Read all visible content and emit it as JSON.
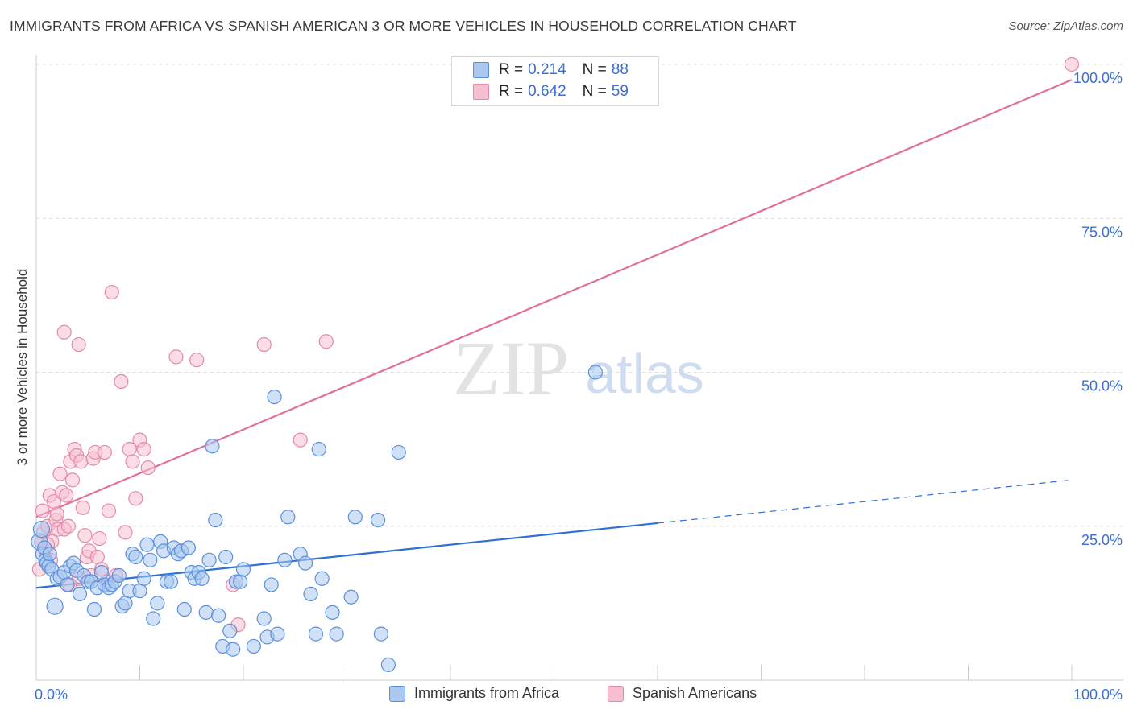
{
  "header": {
    "title": "IMMIGRANTS FROM AFRICA VS SPANISH AMERICAN 3 OR MORE VEHICLES IN HOUSEHOLD CORRELATION CHART",
    "source": "Source: ZipAtlas.com"
  },
  "watermark": {
    "zip": "ZIP",
    "atlas": "atlas"
  },
  "legend": {
    "r_label": "R =",
    "n_label": "N =",
    "series": [
      {
        "r": "0.214",
        "n": "88"
      },
      {
        "r": "0.642",
        "n": "59"
      }
    ]
  },
  "bottom_legend": {
    "items": [
      "Immigrants from Africa",
      "Spanish Americans"
    ]
  },
  "colors": {
    "blue_fill": "#aac8f0",
    "blue_stroke": "#5b8fdb",
    "blue_line": "#2f6fd6",
    "pink_fill": "#f5bfd0",
    "pink_stroke": "#e48aa8",
    "pink_line": "#e07098",
    "tick_label": "#3a6fd4",
    "grid": "#dcdcdc"
  },
  "chart_data": {
    "type": "scatter",
    "title": "IMMIGRANTS FROM AFRICA VS SPANISH AMERICAN 3 OR MORE VEHICLES IN HOUSEHOLD CORRELATION CHART",
    "xlabel": "",
    "ylabel": "3 or more Vehicles in Household",
    "xlim": [
      0,
      100
    ],
    "ylim": [
      0,
      100
    ],
    "x_tick_labels": [
      "0.0%",
      "100.0%"
    ],
    "y_ticks": [
      25,
      50,
      75,
      100
    ],
    "y_tick_labels": [
      "25.0%",
      "50.0%",
      "75.0%",
      "100.0%"
    ],
    "grid": true,
    "legend_position": "top-center",
    "series": [
      {
        "name": "Immigrants from Africa",
        "color": "#5b8fdb",
        "r": 0.214,
        "n": 88,
        "trend": {
          "x0": 0,
          "y0": 15.0,
          "x1": 60,
          "y1": 25.5,
          "dashed_to": [
            100,
            32.5
          ]
        },
        "points": [
          [
            0.3,
            22.5
          ],
          [
            0.5,
            24.5
          ],
          [
            0.6,
            20.5
          ],
          [
            0.8,
            21.5
          ],
          [
            0.9,
            19.5
          ],
          [
            1.0,
            19.0
          ],
          [
            1.2,
            18.5
          ],
          [
            1.3,
            20.5
          ],
          [
            1.5,
            18.0
          ],
          [
            1.8,
            12.0
          ],
          [
            2.0,
            16.5
          ],
          [
            2.3,
            16.8
          ],
          [
            2.7,
            17.5
          ],
          [
            3.0,
            15.5
          ],
          [
            3.3,
            18.5
          ],
          [
            3.6,
            19.0
          ],
          [
            3.9,
            17.8
          ],
          [
            4.2,
            14.0
          ],
          [
            4.6,
            17.0
          ],
          [
            5.0,
            16.0
          ],
          [
            5.3,
            16.0
          ],
          [
            5.6,
            11.5
          ],
          [
            5.9,
            15.0
          ],
          [
            6.3,
            17.5
          ],
          [
            6.6,
            15.5
          ],
          [
            7.0,
            15.0
          ],
          [
            7.3,
            15.5
          ],
          [
            7.6,
            16.0
          ],
          [
            8.0,
            17.0
          ],
          [
            8.3,
            12.0
          ],
          [
            8.6,
            12.5
          ],
          [
            9.0,
            14.5
          ],
          [
            9.3,
            20.5
          ],
          [
            9.6,
            20.0
          ],
          [
            10.0,
            14.5
          ],
          [
            10.4,
            16.5
          ],
          [
            10.7,
            22.0
          ],
          [
            11.0,
            19.5
          ],
          [
            11.3,
            10.0
          ],
          [
            11.7,
            12.5
          ],
          [
            12.0,
            22.5
          ],
          [
            12.3,
            21.0
          ],
          [
            12.6,
            16.0
          ],
          [
            13.0,
            16.0
          ],
          [
            13.3,
            21.5
          ],
          [
            13.7,
            20.5
          ],
          [
            14.0,
            21.0
          ],
          [
            14.3,
            11.5
          ],
          [
            14.7,
            21.5
          ],
          [
            15.0,
            17.5
          ],
          [
            15.3,
            16.5
          ],
          [
            15.7,
            17.5
          ],
          [
            16.0,
            16.5
          ],
          [
            16.4,
            11.0
          ],
          [
            16.7,
            19.5
          ],
          [
            17.0,
            38.0
          ],
          [
            17.3,
            26.0
          ],
          [
            17.6,
            10.5
          ],
          [
            18.0,
            5.5
          ],
          [
            18.3,
            20.0
          ],
          [
            18.7,
            8.0
          ],
          [
            19.0,
            5.0
          ],
          [
            19.3,
            16.0
          ],
          [
            19.7,
            16.0
          ],
          [
            20.0,
            18.0
          ],
          [
            21.0,
            5.5
          ],
          [
            22.0,
            10.0
          ],
          [
            22.3,
            7.0
          ],
          [
            22.7,
            15.5
          ],
          [
            23.0,
            46.0
          ],
          [
            23.3,
            7.5
          ],
          [
            24.0,
            19.5
          ],
          [
            24.3,
            26.5
          ],
          [
            25.5,
            20.5
          ],
          [
            26.0,
            19.0
          ],
          [
            26.5,
            14.0
          ],
          [
            27.0,
            7.5
          ],
          [
            27.3,
            37.5
          ],
          [
            27.6,
            16.5
          ],
          [
            28.6,
            11.0
          ],
          [
            29.0,
            7.5
          ],
          [
            30.4,
            13.5
          ],
          [
            30.8,
            26.5
          ],
          [
            33.0,
            26.0
          ],
          [
            33.3,
            7.5
          ],
          [
            34.0,
            2.5
          ],
          [
            35.0,
            37.0
          ],
          [
            54.0,
            50.0
          ]
        ]
      },
      {
        "name": "Spanish Americans",
        "color": "#e48aa8",
        "r": 0.642,
        "n": 59,
        "trend": {
          "x0": 0,
          "y0": 26.5,
          "x1": 100,
          "y1": 97.5
        },
        "points": [
          [
            0.3,
            18.0
          ],
          [
            0.5,
            22.5
          ],
          [
            0.7,
            24.0
          ],
          [
            0.9,
            21.0
          ],
          [
            1.1,
            25.0
          ],
          [
            1.3,
            30.0
          ],
          [
            1.5,
            22.5
          ],
          [
            1.7,
            29.0
          ],
          [
            1.9,
            26.0
          ],
          [
            2.1,
            24.5
          ],
          [
            2.3,
            33.5
          ],
          [
            2.5,
            30.5
          ],
          [
            2.7,
            24.5
          ],
          [
            2.9,
            30.0
          ],
          [
            3.1,
            25.0
          ],
          [
            3.3,
            35.5
          ],
          [
            3.5,
            32.5
          ],
          [
            3.7,
            37.5
          ],
          [
            3.9,
            36.5
          ],
          [
            4.1,
            16.5
          ],
          [
            4.3,
            35.5
          ],
          [
            4.5,
            28.0
          ],
          [
            4.7,
            23.5
          ],
          [
            4.9,
            20.0
          ],
          [
            5.1,
            21.0
          ],
          [
            5.3,
            17.0
          ],
          [
            5.5,
            36.0
          ],
          [
            5.7,
            37.0
          ],
          [
            5.9,
            20.0
          ],
          [
            6.1,
            23.0
          ],
          [
            6.3,
            18.0
          ],
          [
            6.6,
            37.0
          ],
          [
            7.0,
            27.5
          ],
          [
            7.3,
            63.0
          ],
          [
            7.7,
            17.0
          ],
          [
            8.2,
            48.5
          ],
          [
            8.6,
            24.0
          ],
          [
            9.0,
            37.5
          ],
          [
            9.3,
            35.5
          ],
          [
            9.6,
            29.5
          ],
          [
            10.0,
            39.0
          ],
          [
            10.4,
            37.5
          ],
          [
            10.8,
            34.5
          ],
          [
            2.7,
            56.5
          ],
          [
            4.1,
            54.5
          ],
          [
            13.5,
            52.5
          ],
          [
            15.5,
            52.0
          ],
          [
            19.5,
            9.0
          ],
          [
            22.0,
            54.5
          ],
          [
            25.5,
            39.0
          ],
          [
            28.0,
            55.0
          ],
          [
            1.1,
            22.0
          ],
          [
            1.4,
            19.5
          ],
          [
            2.0,
            27.0
          ],
          [
            3.2,
            15.5
          ],
          [
            6.8,
            16.0
          ],
          [
            19.0,
            15.5
          ],
          [
            0.6,
            27.5
          ],
          [
            100,
            100
          ]
        ]
      }
    ]
  }
}
